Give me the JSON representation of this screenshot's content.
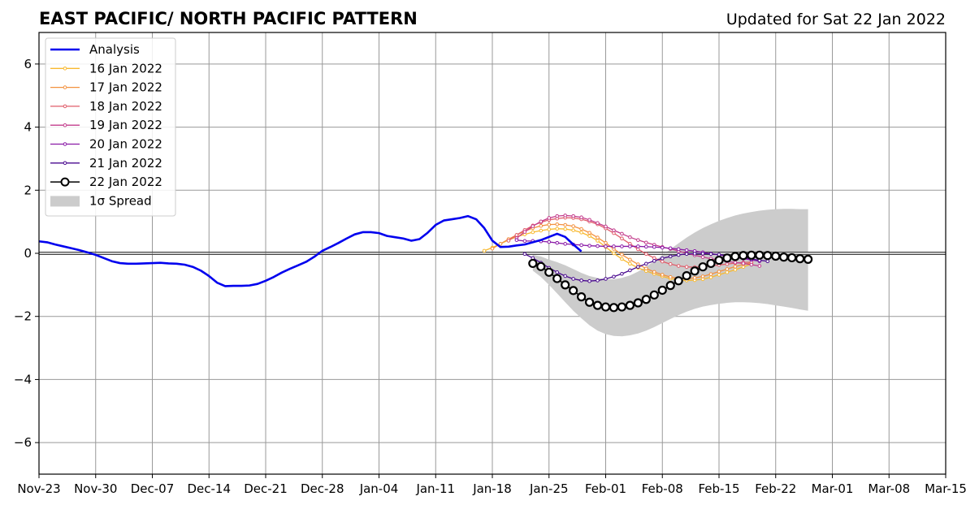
{
  "chart_data": {
    "type": "line",
    "title": "EAST PACIFIC/ NORTH PACIFIC PATTERN",
    "subtitle": "Updated for Sat 22 Jan 2022",
    "xlabel": "",
    "ylabel": "",
    "xlim": [
      "2021-11-23",
      "2022-03-15"
    ],
    "ylim": [
      -7,
      7
    ],
    "grid": true,
    "zero_line": true,
    "legend_position": "top-left",
    "x_ticks": [
      {
        "date": "2021-11-23",
        "label": "Nov-23"
      },
      {
        "date": "2021-11-30",
        "label": "Nov-30"
      },
      {
        "date": "2021-12-07",
        "label": "Dec-07"
      },
      {
        "date": "2021-12-14",
        "label": "Dec-14"
      },
      {
        "date": "2021-12-21",
        "label": "Dec-21"
      },
      {
        "date": "2021-12-28",
        "label": "Dec-28"
      },
      {
        "date": "2022-01-04",
        "label": "Jan-04"
      },
      {
        "date": "2022-01-11",
        "label": "Jan-11"
      },
      {
        "date": "2022-01-18",
        "label": "Jan-18"
      },
      {
        "date": "2022-01-25",
        "label": "Jan-25"
      },
      {
        "date": "2022-02-01",
        "label": "Feb-01"
      },
      {
        "date": "2022-02-08",
        "label": "Feb-08"
      },
      {
        "date": "2022-02-15",
        "label": "Feb-15"
      },
      {
        "date": "2022-02-22",
        "label": "Feb-22"
      },
      {
        "date": "2022-03-01",
        "label": "Mar-01"
      },
      {
        "date": "2022-03-08",
        "label": "Mar-08"
      },
      {
        "date": "2022-03-15",
        "label": "Mar-15"
      }
    ],
    "y_ticks": [
      {
        "value": 6,
        "label": "6"
      },
      {
        "value": 4,
        "label": "4"
      },
      {
        "value": 2,
        "label": "2"
      },
      {
        "value": 0,
        "label": "0"
      },
      {
        "value": -2,
        "label": "−2"
      },
      {
        "value": -4,
        "label": "−4"
      },
      {
        "value": -6,
        "label": "−6"
      }
    ],
    "analysis": {
      "name": "Analysis",
      "color": "#0000ee",
      "start_date": "2021-11-23",
      "values": [
        0.38,
        0.35,
        0.28,
        0.22,
        0.16,
        0.1,
        0.03,
        -0.05,
        -0.15,
        -0.25,
        -0.31,
        -0.33,
        -0.33,
        -0.32,
        -0.31,
        -0.3,
        -0.32,
        -0.33,
        -0.36,
        -0.43,
        -0.55,
        -0.72,
        -0.93,
        -1.04,
        -1.03,
        -1.03,
        -1.02,
        -0.97,
        -0.87,
        -0.75,
        -0.61,
        -0.49,
        -0.38,
        -0.27,
        -0.11,
        0.08,
        0.2,
        0.33,
        0.47,
        0.6,
        0.67,
        0.67,
        0.64,
        0.55,
        0.51,
        0.47,
        0.4,
        0.45,
        0.65,
        0.9,
        1.04,
        1.08,
        1.12,
        1.18,
        1.08,
        0.8,
        0.4,
        0.2,
        0.21,
        0.25,
        0.28,
        0.35,
        0.42,
        0.52,
        0.62,
        0.52,
        0.28,
        0.06
      ]
    },
    "forecasts": [
      {
        "name": "16 Jan 2022",
        "color": "#f8b92f",
        "start_date": "2022-01-17",
        "values": [
          0.08,
          0.18,
          0.3,
          0.42,
          0.52,
          0.6,
          0.67,
          0.72,
          0.76,
          0.78,
          0.77,
          0.73,
          0.66,
          0.55,
          0.4,
          0.2,
          0.0,
          -0.18,
          -0.33,
          -0.46,
          -0.56,
          -0.65,
          -0.73,
          -0.8,
          -0.84,
          -0.86,
          -0.85,
          -0.82,
          -0.76,
          -0.68,
          -0.6,
          -0.52,
          -0.43,
          -0.34
        ]
      },
      {
        "name": "17 Jan 2022",
        "color": "#f3913f",
        "start_date": "2022-01-18",
        "values": [
          0.15,
          0.3,
          0.45,
          0.58,
          0.7,
          0.8,
          0.87,
          0.91,
          0.92,
          0.9,
          0.86,
          0.77,
          0.65,
          0.5,
          0.33,
          0.14,
          -0.04,
          -0.2,
          -0.35,
          -0.48,
          -0.59,
          -0.68,
          -0.75,
          -0.79,
          -0.8,
          -0.78,
          -0.73,
          -0.66,
          -0.58,
          -0.5,
          -0.42,
          -0.35,
          -0.3
        ]
      },
      {
        "name": "18 Jan 2022",
        "color": "#e05c6a",
        "start_date": "2022-01-20",
        "values": [
          0.4,
          0.58,
          0.74,
          0.88,
          0.98,
          1.06,
          1.1,
          1.13,
          1.12,
          1.08,
          1.01,
          0.92,
          0.79,
          0.64,
          0.47,
          0.3,
          0.13,
          -0.02,
          -0.15,
          -0.26,
          -0.34,
          -0.4,
          -0.43,
          -0.44,
          -0.42,
          -0.4,
          -0.37,
          -0.34,
          -0.31,
          -0.29,
          -0.28
        ]
      },
      {
        "name": "19 Jan 2022",
        "color": "#c33c8c",
        "start_date": "2022-01-21",
        "values": [
          0.48,
          0.68,
          0.86,
          1.01,
          1.12,
          1.18,
          1.2,
          1.18,
          1.14,
          1.06,
          0.96,
          0.85,
          0.73,
          0.62,
          0.51,
          0.42,
          0.34,
          0.27,
          0.2,
          0.14,
          0.07,
          0.0,
          -0.06,
          -0.12,
          -0.17,
          -0.22,
          -0.26,
          -0.29,
          -0.32,
          -0.36,
          -0.4
        ]
      },
      {
        "name": "20 Jan 2022",
        "color": "#8a1aa7",
        "start_date": "2022-01-21",
        "values": [
          0.42,
          0.39,
          0.39,
          0.38,
          0.36,
          0.33,
          0.3,
          0.28,
          0.26,
          0.24,
          0.23,
          0.22,
          0.22,
          0.22,
          0.22,
          0.22,
          0.21,
          0.2,
          0.18,
          0.16,
          0.13,
          0.1,
          0.07,
          0.03,
          -0.01,
          -0.05,
          -0.09,
          -0.13,
          -0.17,
          -0.21,
          -0.25
        ]
      },
      {
        "name": "21 Jan 2022",
        "color": "#4a0a8f",
        "start_date": "2022-01-22",
        "values": [
          -0.02,
          -0.15,
          -0.3,
          -0.46,
          -0.6,
          -0.72,
          -0.81,
          -0.86,
          -0.88,
          -0.86,
          -0.81,
          -0.74,
          -0.65,
          -0.54,
          -0.43,
          -0.33,
          -0.24,
          -0.16,
          -0.1,
          -0.05,
          -0.02,
          -0.01,
          -0.01,
          -0.02,
          -0.04,
          -0.07,
          -0.1,
          -0.14,
          -0.18,
          -0.22,
          -0.25
        ]
      }
    ],
    "latest": {
      "name": "22 Jan 2022",
      "color": "#000000",
      "marker_fill": "#ffffff",
      "start_date": "2022-01-23",
      "values": [
        -0.32,
        -0.42,
        -0.6,
        -0.8,
        -1.0,
        -1.18,
        -1.38,
        -1.55,
        -1.65,
        -1.7,
        -1.72,
        -1.7,
        -1.65,
        -1.57,
        -1.46,
        -1.32,
        -1.17,
        -1.02,
        -0.87,
        -0.71,
        -0.56,
        -0.43,
        -0.32,
        -0.22,
        -0.15,
        -0.1,
        -0.07,
        -0.06,
        -0.06,
        -0.07,
        -0.09,
        -0.12,
        -0.14,
        -0.17,
        -0.19
      ]
    },
    "spread": {
      "name": "1σ Spread",
      "color": "#cccccc",
      "start_date": "2022-01-23",
      "upper": [
        -0.05,
        -0.1,
        -0.2,
        -0.28,
        -0.38,
        -0.5,
        -0.62,
        -0.72,
        -0.78,
        -0.82,
        -0.82,
        -0.78,
        -0.7,
        -0.58,
        -0.42,
        -0.25,
        -0.06,
        0.13,
        0.32,
        0.5,
        0.66,
        0.8,
        0.92,
        1.03,
        1.12,
        1.2,
        1.26,
        1.31,
        1.35,
        1.38,
        1.4,
        1.41,
        1.41,
        1.4,
        1.4
      ],
      "lower": [
        -0.55,
        -0.75,
        -1.0,
        -1.27,
        -1.55,
        -1.82,
        -2.06,
        -2.28,
        -2.45,
        -2.56,
        -2.62,
        -2.63,
        -2.6,
        -2.54,
        -2.45,
        -2.34,
        -2.21,
        -2.08,
        -1.96,
        -1.85,
        -1.76,
        -1.69,
        -1.64,
        -1.6,
        -1.57,
        -1.55,
        -1.55,
        -1.56,
        -1.58,
        -1.61,
        -1.65,
        -1.69,
        -1.73,
        -1.78,
        -1.82
      ]
    }
  }
}
